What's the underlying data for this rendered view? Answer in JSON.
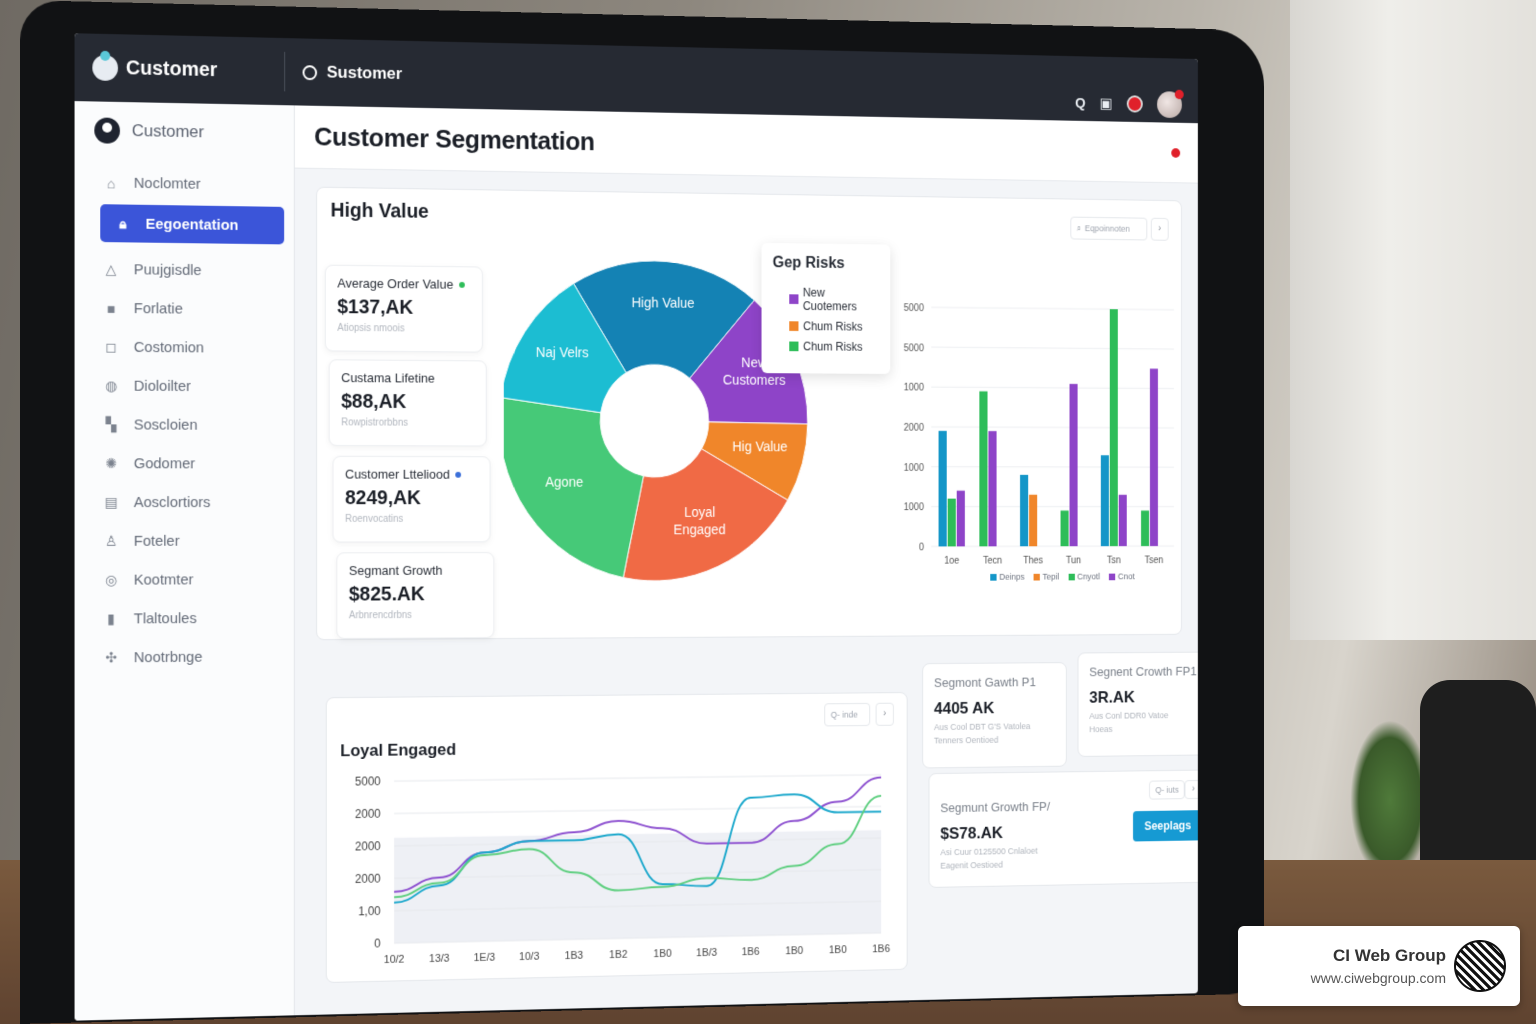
{
  "topbar": {
    "brand_label": "Customer",
    "tab_label": "Sustomer",
    "icons": [
      "search-icon",
      "bookmark-icon",
      "notification-icon",
      "avatar"
    ]
  },
  "sidebar": {
    "header_label": "Customer",
    "items": [
      {
        "label": "Noclomter",
        "icon": "home-icon",
        "glyph": "⌂",
        "active": false
      },
      {
        "label": "Eegoentation",
        "icon": "lock-icon",
        "glyph": "🔒︎",
        "active": true
      },
      {
        "label": "Puujgisdle",
        "icon": "basket-icon",
        "glyph": "△",
        "active": false
      },
      {
        "label": "Forlatie",
        "icon": "folder-icon",
        "glyph": "■",
        "active": false
      },
      {
        "label": "Costomion",
        "icon": "square-target-icon",
        "glyph": "◻",
        "active": false
      },
      {
        "label": "Dioloilter",
        "icon": "camera-icon",
        "glyph": "◍",
        "active": false
      },
      {
        "label": "Soscloien",
        "icon": "grid-icon",
        "glyph": "▚",
        "active": false
      },
      {
        "label": "Godomer",
        "icon": "globe-icon",
        "glyph": "✺",
        "active": false
      },
      {
        "label": "Aosclortiors",
        "icon": "calendar-icon",
        "glyph": "▤",
        "active": false
      },
      {
        "label": "Foteler",
        "icon": "person-icon",
        "glyph": "♙",
        "active": false
      },
      {
        "label": "Kootmter",
        "icon": "target-icon",
        "glyph": "◎",
        "active": false
      },
      {
        "label": "Tlaltoules",
        "icon": "book-icon",
        "glyph": "▮",
        "active": false
      },
      {
        "label": "Nootrbnge",
        "icon": "settings-icon",
        "glyph": "✣",
        "active": false
      }
    ]
  },
  "page": {
    "title": "Customer Segmentation"
  },
  "main_panel": {
    "title": "High Value",
    "search_placeholder": "Eqpoinnoten",
    "next_label": "›",
    "kpis": [
      {
        "label": "Average Order Value",
        "value": "$137,AK",
        "sub": "Atiopsis nmoois",
        "dot_color": "#2ebd59"
      },
      {
        "label": "Custama Lifetine",
        "value": "$88,AK",
        "sub": "Rowpistrorbbns",
        "dot_color": ""
      },
      {
        "label": "Customer Ltteliood",
        "value": "8249,AK",
        "sub": "Roenvocatins",
        "dot_color": "#3b6fd9"
      },
      {
        "label": "Segmant Growth",
        "value": "$825.AK",
        "sub": "Arbnrencdrbns",
        "dot_color": ""
      }
    ],
    "legend": {
      "title": "Gep Risks",
      "items": [
        {
          "label": "New Cuotemers",
          "color": "#8e44c8"
        },
        {
          "label": "Chum Risks",
          "color": "#f0862a"
        },
        {
          "label": "Chum Risks",
          "color": "#2ebd59"
        }
      ]
    },
    "bar_legend": [
      {
        "label": "Deinps",
        "color": "#1496c8"
      },
      {
        "label": "Tepil",
        "color": "#f0862a"
      },
      {
        "label": "Cnyotl",
        "color": "#2ebd59"
      },
      {
        "label": "Cnot",
        "color": "#8e44c8"
      }
    ]
  },
  "line_panel": {
    "title": "Loyal Engaged",
    "search_label": "Q- inde",
    "next_label": "›"
  },
  "side_kpis": [
    {
      "label": "Segmont Gawth P1",
      "value": "4405 AK",
      "sub1": "Aus Cool DBT G'S Vatolea",
      "sub2": "Tenners Oentioed"
    },
    {
      "label": "Segnent Crowth FP1",
      "value": "3R.AK",
      "sub1": "Aus Conl DDR0 Vatoe",
      "sub2": "Hoeas"
    },
    {
      "label": "Segmunt Growth FP/",
      "value": "$S78.AK",
      "sub1": "Asi Cuur 0125500 Cnlaloet",
      "sub2": "Eagenit Oestioed",
      "search_label": "Q- iuts",
      "button_label": "Seeplags"
    }
  ],
  "watermark": {
    "name": "CI Web Group",
    "url": "www.ciwebgroup.com"
  },
  "chart_data": [
    {
      "type": "pie",
      "title": "High Value",
      "donut": true,
      "categories": [
        "High Value",
        "New Customers",
        "Hig Value",
        "Loyal Engaged",
        "Agone",
        "Naj Velrs"
      ],
      "values": [
        20,
        14,
        8,
        20,
        24,
        14
      ],
      "colors": [
        "#1482b4",
        "#8e44c8",
        "#f0862a",
        "#f06a45",
        "#46c978",
        "#1cbdd2"
      ]
    },
    {
      "type": "bar",
      "title": "",
      "categories": [
        "1oe",
        "Tecn",
        "Thes",
        "Tun",
        "Tsn",
        "Tsen"
      ],
      "yticks": [
        "0",
        "1000",
        "1000",
        "2000",
        "1000",
        "5000",
        "5000"
      ],
      "series": [
        {
          "name": "Deinps",
          "color": "#1496c8",
          "values": [
            2900,
            0,
            1800,
            0,
            2300,
            0
          ]
        },
        {
          "name": "Tepil",
          "color": "#f0862a",
          "values": [
            0,
            0,
            1300,
            0,
            0,
            0
          ]
        },
        {
          "name": "Cnyotl",
          "color": "#2ebd59",
          "values": [
            1200,
            3900,
            0,
            900,
            6000,
            900
          ]
        },
        {
          "name": "Cnot",
          "color": "#8e44c8",
          "values": [
            1400,
            2900,
            0,
            4100,
            1300,
            4500
          ]
        }
      ],
      "ylim": [
        0,
        6000
      ],
      "grid": true,
      "legend_position": "bottom"
    },
    {
      "type": "line",
      "title": "Loyal Engaged",
      "x": [
        "10/2",
        "13/3",
        "1E/3",
        "10/3",
        "1B3",
        "1B2",
        "1B0",
        "1B/3",
        "1B6",
        "1B0",
        "1B0",
        "1B6"
      ],
      "yticks": [
        "0",
        "1,00",
        "2000",
        "2000",
        "2000",
        "5000"
      ],
      "series": [
        {
          "name": "Purple",
          "color": "#8e52d0",
          "values": [
            1900,
            2400,
            3300,
            3700,
            4000,
            4400,
            4100,
            3500,
            3500,
            4300,
            5000,
            5900
          ]
        },
        {
          "name": "Teal",
          "color": "#1ca8cc",
          "values": [
            1500,
            2100,
            3300,
            3700,
            3700,
            3900,
            2000,
            1900,
            5200,
            5300,
            4600,
            4600
          ]
        },
        {
          "name": "Green",
          "color": "#5fcf80",
          "values": [
            1700,
            2200,
            3200,
            3400,
            2500,
            1800,
            1900,
            2200,
            2100,
            2600,
            3400,
            5200
          ]
        }
      ],
      "ylim": [
        0,
        6000
      ],
      "grid": true
    }
  ]
}
